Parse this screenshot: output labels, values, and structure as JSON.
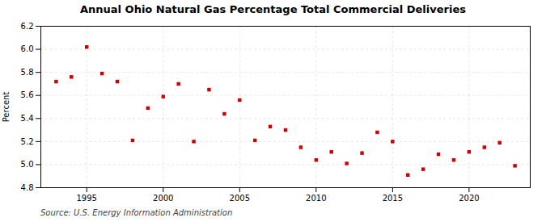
{
  "chart_data": {
    "type": "scatter",
    "title": "Annual Ohio Natural Gas Percentage Total Commercial Deliveries",
    "ylabel": "Percent",
    "annotation": "Source: U.S. Energy Information Administration",
    "x": [
      1993,
      1994,
      1995,
      1996,
      1997,
      1998,
      1999,
      2000,
      2001,
      2002,
      2003,
      2004,
      2005,
      2006,
      2007,
      2008,
      2009,
      2010,
      2011,
      2012,
      2013,
      2014,
      2015,
      2016,
      2017,
      2018,
      2019,
      2020,
      2021,
      2022,
      2023
    ],
    "values": [
      5.72,
      5.76,
      6.02,
      5.79,
      5.72,
      5.21,
      5.49,
      5.59,
      5.7,
      5.2,
      5.65,
      5.44,
      5.56,
      5.21,
      5.33,
      5.3,
      5.15,
      5.04,
      5.11,
      5.01,
      5.1,
      5.28,
      5.2,
      4.91,
      4.96,
      5.09,
      5.04,
      5.11,
      5.15,
      5.19,
      4.99
    ],
    "color": "#cc0000",
    "marker": "square",
    "xlim": [
      1992,
      2024
    ],
    "xticks": [
      1995,
      2000,
      2005,
      2010,
      2015,
      2020
    ],
    "ylim": [
      4.8,
      6.2
    ],
    "yticks": [
      4.8,
      {
        "value": 5.0,
        "label": "5.0"
      },
      5.2,
      5.4,
      5.6,
      5.8,
      {
        "value": 6.0,
        "label": "6.0"
      },
      6.2
    ],
    "grid": true
  }
}
